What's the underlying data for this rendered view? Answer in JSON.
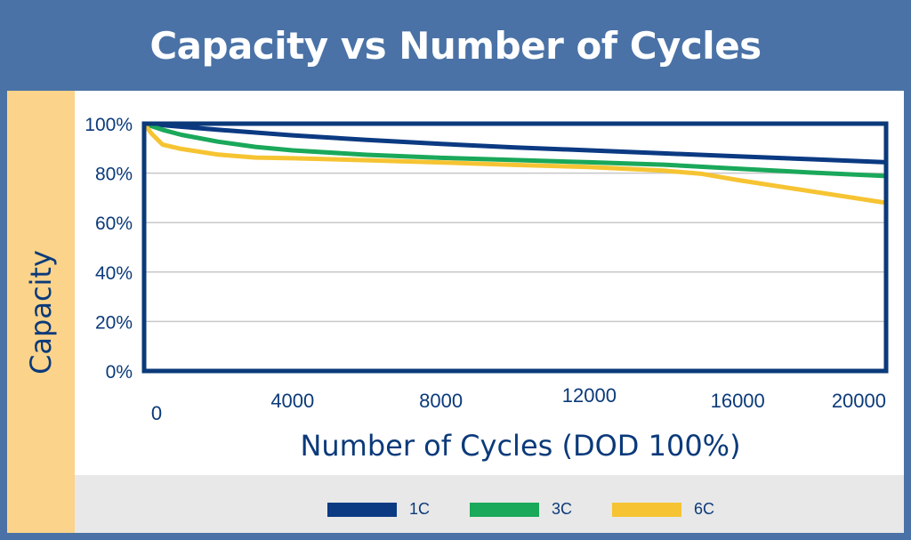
{
  "header": {
    "title": "Capacity vs Number of Cycles"
  },
  "chart_data": {
    "type": "line",
    "title": "Capacity vs Number of Cycles",
    "xlabel": "Number of Cycles (DOD 100%)",
    "ylabel": "Capacity",
    "xlim": [
      0,
      20000
    ],
    "ylim": [
      0,
      100
    ],
    "x_ticks": [
      0,
      4000,
      8000,
      12000,
      16000,
      20000
    ],
    "x_tick_labels": [
      "0",
      "4000",
      "8000",
      "12000",
      "16000",
      "20000"
    ],
    "y_ticks": [
      0,
      20,
      40,
      60,
      80,
      100
    ],
    "y_tick_labels": [
      "0%",
      "20%",
      "40%",
      "60%",
      "80%",
      "100%"
    ],
    "grid": "horizontal",
    "legend_position": "bottom",
    "series": [
      {
        "name": "1C",
        "color": "#0b3a82",
        "x": [
          0,
          2000,
          4000,
          6000,
          8000,
          10000,
          12000,
          14000,
          16000,
          18000,
          20000
        ],
        "y": [
          100,
          97.5,
          95.3,
          93.4,
          91.8,
          90.4,
          89.2,
          88.0,
          86.8,
          85.6,
          84.4
        ]
      },
      {
        "name": "3C",
        "color": "#1aa85a",
        "x": [
          0,
          500,
          1000,
          2000,
          3000,
          4000,
          6000,
          8000,
          10000,
          12000,
          14000,
          16000,
          18000,
          20000
        ],
        "y": [
          100,
          97.5,
          95.5,
          92.7,
          90.6,
          89.2,
          87.4,
          86.2,
          85.3,
          84.4,
          83.4,
          81.8,
          80.2,
          78.8
        ]
      },
      {
        "name": "6C",
        "color": "#f6c433",
        "x": [
          0,
          200,
          500,
          1000,
          2000,
          3000,
          4000,
          6000,
          8000,
          10000,
          12000,
          14000,
          15000,
          16000,
          18000,
          20000
        ],
        "y": [
          100,
          96,
          91.5,
          89.8,
          87.5,
          86.3,
          86.0,
          85.2,
          84.3,
          83.3,
          82.5,
          81.0,
          79.8,
          77.2,
          72.6,
          68.0
        ]
      }
    ]
  }
}
